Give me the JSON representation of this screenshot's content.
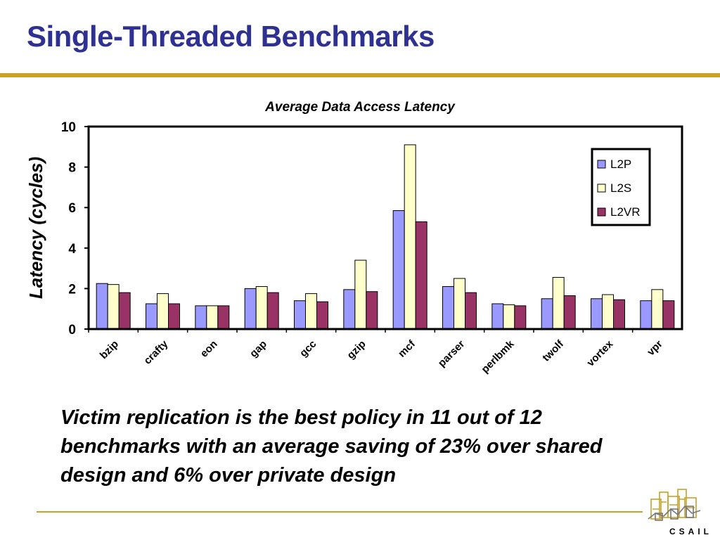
{
  "slide": {
    "title": "Single-Threaded Benchmarks",
    "caption": "Victim replication is the best policy in 11 out of 12 benchmarks with an average saving of 23% over shared design and 6% over private design",
    "logo_text": "CSAIL",
    "rule_color": "#c9a227",
    "title_color": "#2e3192"
  },
  "chart_data": {
    "type": "bar",
    "title": "Average Data Access Latency",
    "xlabel": "",
    "ylabel": "Latency (cycles)",
    "ylim": [
      0,
      10
    ],
    "yticks": [
      0,
      2,
      4,
      6,
      8,
      10
    ],
    "grid": false,
    "legend_position": "top-right",
    "categories": [
      "bzip",
      "crafty",
      "eon",
      "gap",
      "gcc",
      "gzip",
      "mcf",
      "parser",
      "perlbmk",
      "twolf",
      "vortex",
      "vpr"
    ],
    "series": [
      {
        "name": "L2P",
        "color": "#9999ff",
        "values": [
          2.25,
          1.25,
          1.15,
          2.0,
          1.4,
          1.95,
          5.85,
          2.1,
          1.25,
          1.5,
          1.5,
          1.4
        ]
      },
      {
        "name": "L2S",
        "color": "#ffffcc",
        "values": [
          2.2,
          1.75,
          1.15,
          2.1,
          1.75,
          3.4,
          9.1,
          2.5,
          1.2,
          2.55,
          1.7,
          1.95
        ]
      },
      {
        "name": "L2VR",
        "color": "#993366",
        "values": [
          1.8,
          1.25,
          1.15,
          1.8,
          1.35,
          1.85,
          5.3,
          1.8,
          1.15,
          1.65,
          1.45,
          1.4
        ]
      }
    ]
  }
}
